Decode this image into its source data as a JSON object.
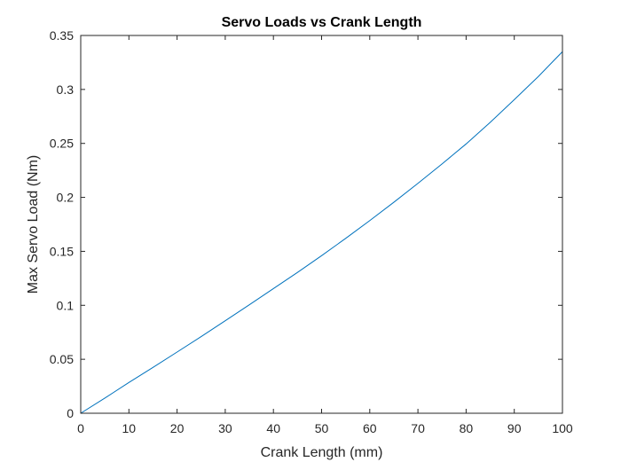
{
  "chart_data": {
    "type": "line",
    "title": "Servo Loads vs Crank Length",
    "xlabel": "Crank Length (mm)",
    "ylabel": "Max Servo Load (Nm)",
    "xlim": [
      0,
      100
    ],
    "ylim": [
      0,
      0.35
    ],
    "xticks": [
      0,
      10,
      20,
      30,
      40,
      50,
      60,
      70,
      80,
      90,
      100
    ],
    "yticks": [
      0,
      0.05,
      0.1,
      0.15,
      0.2,
      0.25,
      0.3,
      0.35
    ],
    "xtick_labels": [
      "0",
      "10",
      "20",
      "30",
      "40",
      "50",
      "60",
      "70",
      "80",
      "90",
      "100"
    ],
    "ytick_labels": [
      "0",
      "0.05",
      "0.1",
      "0.15",
      "0.2",
      "0.25",
      "0.3",
      "0.35"
    ],
    "grid": false,
    "line_color": "#0072BD",
    "series": [
      {
        "x": [
          0,
          5,
          10,
          15,
          20,
          25,
          30,
          35,
          40,
          45,
          50,
          55,
          60,
          65,
          70,
          75,
          80,
          85,
          90,
          95,
          100
        ],
        "y": [
          0,
          0.014,
          0.0285,
          0.0425,
          0.0567,
          0.071,
          0.0857,
          0.1005,
          0.1155,
          0.1305,
          0.146,
          0.162,
          0.1785,
          0.1955,
          0.213,
          0.231,
          0.2495,
          0.2695,
          0.2905,
          0.312,
          0.335
        ]
      }
    ]
  }
}
